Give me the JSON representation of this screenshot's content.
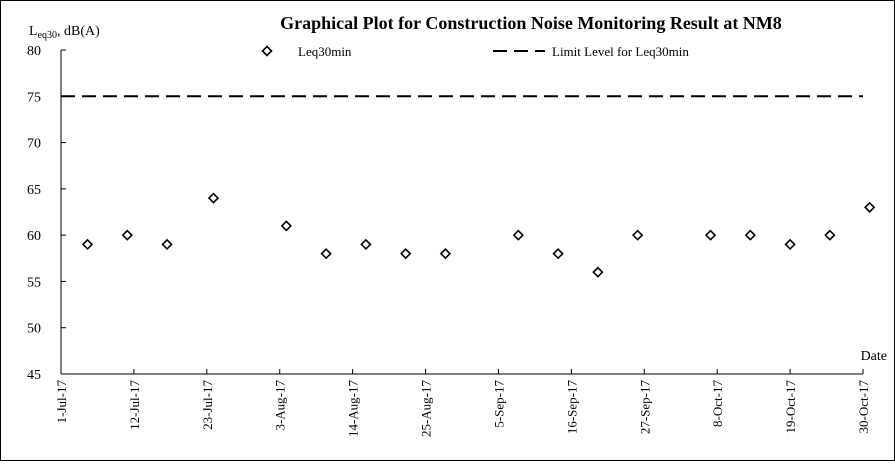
{
  "chart_data": {
    "type": "scatter",
    "title": "Graphical Plot for Construction Noise Monitoring Result at NM8",
    "ylabel": {
      "main": "L",
      "sub": "eq30",
      "rest": ", dB(A)"
    },
    "xlabel": "Date",
    "ylim": [
      45,
      80
    ],
    "yticks": [
      45,
      50,
      55,
      60,
      65,
      70,
      75,
      80
    ],
    "xlim": [
      "2017-07-01",
      "2017-10-30"
    ],
    "xticks": [
      {
        "date": "2017-07-01",
        "label": "1-Jul-17"
      },
      {
        "date": "2017-07-12",
        "label": "12-Jul-17"
      },
      {
        "date": "2017-07-23",
        "label": "23-Jul-17"
      },
      {
        "date": "2017-08-03",
        "label": "3-Aug-17"
      },
      {
        "date": "2017-08-14",
        "label": "14-Aug-17"
      },
      {
        "date": "2017-08-25",
        "label": "25-Aug-17"
      },
      {
        "date": "2017-09-05",
        "label": "5-Sep-17"
      },
      {
        "date": "2017-09-16",
        "label": "16-Sep-17"
      },
      {
        "date": "2017-09-27",
        "label": "27-Sep-17"
      },
      {
        "date": "2017-10-08",
        "label": "8-Oct-17"
      },
      {
        "date": "2017-10-19",
        "label": "19-Oct-17"
      },
      {
        "date": "2017-10-30",
        "label": "30-Oct-17"
      }
    ],
    "series": [
      {
        "name": "Leq30min",
        "marker": "diamond",
        "points": [
          {
            "x": "2017-07-05",
            "y": 59
          },
          {
            "x": "2017-07-11",
            "y": 60
          },
          {
            "x": "2017-07-17",
            "y": 59
          },
          {
            "x": "2017-07-24",
            "y": 64
          },
          {
            "x": "2017-08-04",
            "y": 61
          },
          {
            "x": "2017-08-10",
            "y": 58
          },
          {
            "x": "2017-08-16",
            "y": 59
          },
          {
            "x": "2017-08-22",
            "y": 58
          },
          {
            "x": "2017-08-28",
            "y": 58
          },
          {
            "x": "2017-09-08",
            "y": 60
          },
          {
            "x": "2017-09-14",
            "y": 58
          },
          {
            "x": "2017-09-20",
            "y": 56
          },
          {
            "x": "2017-09-26",
            "y": 60
          },
          {
            "x": "2017-10-07",
            "y": 60
          },
          {
            "x": "2017-10-13",
            "y": 60
          },
          {
            "x": "2017-10-19",
            "y": 59
          },
          {
            "x": "2017-10-25",
            "y": 60
          },
          {
            "x": "2017-10-31",
            "y": 63
          }
        ]
      }
    ],
    "limit": {
      "name": "Limit Level for Leq30min",
      "y": 75,
      "style": "dashed"
    },
    "grid": false,
    "legend_position": "top"
  }
}
